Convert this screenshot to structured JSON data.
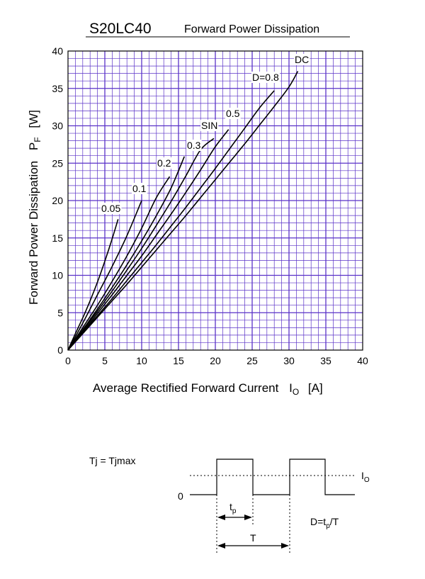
{
  "header": {
    "part_number": "S20LC40",
    "title": "Forward Power Dissipation"
  },
  "chart_data": {
    "type": "line",
    "title": "Forward Power Dissipation",
    "xlabel": "Average Rectified Forward Current",
    "xlabel_symbol": "I",
    "xlabel_sub": "O",
    "xlabel_unit": "[A]",
    "ylabel": "Forward Power Dissipation",
    "ylabel_symbol": "P",
    "ylabel_sub": "F",
    "ylabel_unit": "[W]",
    "xlim": [
      0,
      40
    ],
    "ylim": [
      0,
      40
    ],
    "x_ticks": [
      0,
      5,
      10,
      15,
      20,
      25,
      30,
      35,
      40
    ],
    "y_ticks": [
      0,
      5,
      10,
      15,
      20,
      25,
      30,
      35,
      40
    ],
    "grid": true,
    "grid_color": "#5a32c8",
    "series": [
      {
        "name": "0.05",
        "points": [
          [
            0,
            0
          ],
          [
            1,
            2.2
          ],
          [
            2,
            4.3
          ],
          [
            3,
            6.6
          ],
          [
            4,
            9.1
          ],
          [
            5,
            11.9
          ],
          [
            6,
            14.9
          ],
          [
            6.8,
            17.5
          ]
        ]
      },
      {
        "name": "0.1",
        "points": [
          [
            0,
            0
          ],
          [
            2,
            3.6
          ],
          [
            4,
            7.4
          ],
          [
            6,
            11.2
          ],
          [
            8,
            15.3
          ],
          [
            10,
            20.0
          ]
        ]
      },
      {
        "name": "0.2",
        "points": [
          [
            0,
            0
          ],
          [
            2,
            3.0
          ],
          [
            4,
            6.0
          ],
          [
            6,
            9.2
          ],
          [
            8,
            12.6
          ],
          [
            10,
            16.3
          ],
          [
            12,
            20.4
          ],
          [
            13.8,
            23.2
          ]
        ]
      },
      {
        "name": "0.3",
        "points": [
          [
            0,
            0
          ],
          [
            2,
            2.7
          ],
          [
            4,
            5.5
          ],
          [
            6,
            8.4
          ],
          [
            8,
            11.4
          ],
          [
            10,
            14.6
          ],
          [
            12,
            18.0
          ],
          [
            14,
            21.7
          ],
          [
            15.8,
            25.9
          ]
        ]
      },
      {
        "name": "SIN",
        "points": [
          [
            0,
            0
          ],
          [
            2,
            2.6
          ],
          [
            4,
            5.2
          ],
          [
            6,
            7.9
          ],
          [
            8,
            10.7
          ],
          [
            10,
            13.6
          ],
          [
            12,
            16.7
          ],
          [
            14,
            19.9
          ],
          [
            16,
            23.3
          ],
          [
            18,
            26.8
          ],
          [
            19.8,
            28.3
          ]
        ]
      },
      {
        "name": "0.5",
        "points": [
          [
            0,
            0
          ],
          [
            2,
            2.4
          ],
          [
            4,
            4.9
          ],
          [
            6,
            7.4
          ],
          [
            8,
            10.0
          ],
          [
            10,
            12.6
          ],
          [
            12,
            15.4
          ],
          [
            14,
            18.2
          ],
          [
            16,
            21.1
          ],
          [
            18,
            24.1
          ],
          [
            20,
            27.2
          ],
          [
            21.8,
            29.5
          ]
        ]
      },
      {
        "name": "D=0.8",
        "points": [
          [
            0,
            0
          ],
          [
            2,
            2.3
          ],
          [
            4,
            4.6
          ],
          [
            6,
            6.9
          ],
          [
            8,
            9.3
          ],
          [
            10,
            11.7
          ],
          [
            12,
            14.1
          ],
          [
            14,
            16.6
          ],
          [
            16,
            19.1
          ],
          [
            18,
            21.7
          ],
          [
            20,
            24.3
          ],
          [
            22,
            27.0
          ],
          [
            24,
            29.7
          ],
          [
            26,
            32.4
          ],
          [
            28,
            34.7
          ]
        ]
      },
      {
        "name": "DC",
        "points": [
          [
            0,
            0
          ],
          [
            2,
            2.2
          ],
          [
            4,
            4.4
          ],
          [
            6,
            6.6
          ],
          [
            8,
            8.8
          ],
          [
            10,
            11.1
          ],
          [
            12,
            13.4
          ],
          [
            14,
            15.7
          ],
          [
            16,
            18.0
          ],
          [
            18,
            20.4
          ],
          [
            20,
            22.8
          ],
          [
            22,
            25.2
          ],
          [
            24,
            27.6
          ],
          [
            26,
            30.1
          ],
          [
            28,
            32.6
          ],
          [
            30,
            35.2
          ],
          [
            31.2,
            37.3
          ]
        ]
      }
    ],
    "curve_labels": [
      {
        "text": "0.05"
      },
      {
        "text": "0.1"
      },
      {
        "text": "0.2"
      },
      {
        "text": "0.3"
      },
      {
        "text": "SIN"
      },
      {
        "text": "0.5"
      },
      {
        "text": "D=0.8"
      },
      {
        "text": "DC"
      }
    ]
  },
  "waveform": {
    "condition": "Tj = Tjmax",
    "zero_label": "0",
    "io_symbol": "I",
    "io_sub": "O",
    "tp_symbol": "t",
    "tp_sub": "p",
    "period_label": "T",
    "duty_prefix": "D=t",
    "duty_sub": "p",
    "duty_suffix": "/T"
  }
}
